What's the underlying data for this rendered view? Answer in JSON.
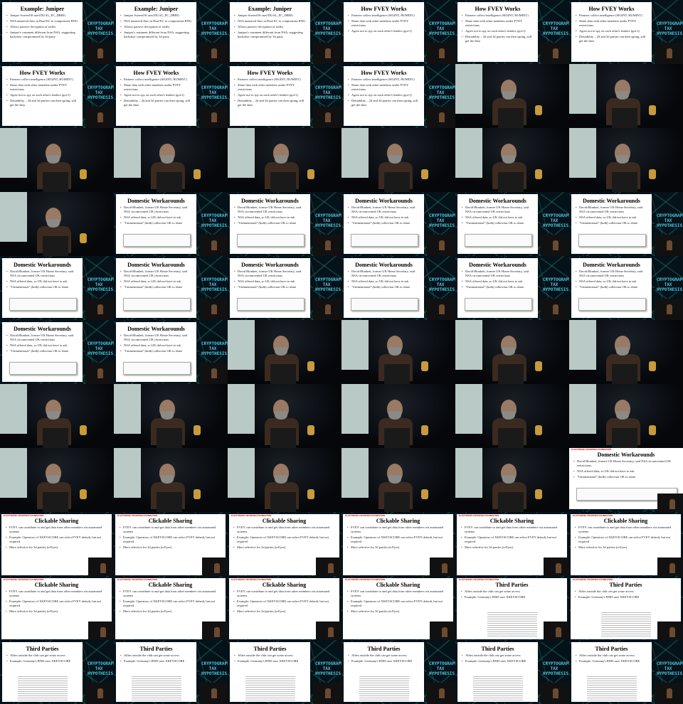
{
  "header": {
    "brand": "ELECTRONIC FRONTIER FOUNDATION"
  },
  "logo_text": "CRYPTOGRAPHY\nTAX\nHYPOTHESIS",
  "tiles": [
    {
      "kind": "slide",
      "style": "small",
      "title": "Example: Juniper",
      "bullets": [
        "Juniper ScreenOS used DUAL_EC_DRBG",
        "NSA mastered flaw in Dual EC to compromise RNG",
        "Allows passive decryption of traffic",
        "Juniper's comment different from NSA, suggesting backdoor compromised by 3d party"
      ],
      "quote": false,
      "doc": false
    },
    {
      "kind": "slide",
      "style": "small",
      "title": "Example: Juniper",
      "bullets": [
        "Juniper ScreenOS used DUAL_EC_DRBG",
        "NSA mastered flaw in Dual EC to compromise RNG",
        "Allows passive decryption of traffic",
        "Juniper's comment different from NSA, suggesting backdoor compromised by 3d party"
      ],
      "quote": false,
      "doc": false
    },
    {
      "kind": "slide",
      "style": "small",
      "title": "Example: Juniper",
      "bullets": [
        "Juniper ScreenOS used DUAL_EC_DRBG",
        "NSA mastered flaw in Dual EC to compromise RNG",
        "Allows passive decryption of traffic",
        "Juniper's comment different from NSA, suggesting backdoor compromised by 3d party"
      ],
      "quote": false,
      "doc": false
    },
    {
      "kind": "slide",
      "style": "small",
      "title": "How FVEY Works",
      "bullets": [
        "Partners collect intelligence (SIGINT, HUMINT)",
        "Share data with other members under FVEY restrictions",
        "Agree not to spy on each other's leaders (gov't)"
      ],
      "quote": false,
      "doc": false
    },
    {
      "kind": "slide",
      "style": "small",
      "title": "How FVEY Works",
      "bullets": [
        "Partners collect intelligence (SIGINT, HUMINT)",
        "Share data with other members under FVEY restrictions",
        "Agree not to spy on each other's leaders (gov't)",
        "Deniability – 2d and 3d parties can then spring, still get the data"
      ],
      "quote": false,
      "doc": false
    },
    {
      "kind": "slide",
      "style": "small",
      "title": "How FVEY Works",
      "bullets": [
        "Partners collect intelligence (SIGINT, HUMINT)",
        "Share data with other members under FVEY restrictions",
        "Agree not to spy on each other's leaders (gov't)",
        "Deniability – 2d and 3d parties can then spring, still get the data"
      ],
      "quote": false,
      "doc": false
    },
    {
      "kind": "slide",
      "style": "small",
      "title": "How FVEY Works",
      "bullets": [
        "Partners collect intelligence (SIGINT, HUMINT)",
        "Share data with other members under FVEY restrictions",
        "Agree not to spy on each other's leaders (gov't)",
        "Deniability – 2d and 3d parties can then spring, still get the data"
      ],
      "quote": false,
      "doc": false
    },
    {
      "kind": "slide",
      "style": "small",
      "title": "How FVEY Works",
      "bullets": [
        "Partners collect intelligence (SIGINT, HUMINT)",
        "Share data with other members under FVEY restrictions",
        "Agree not to spy on each other's leaders (gov't)",
        "Deniability – 2d and 3d parties can then spring, still get the data"
      ],
      "quote": false,
      "doc": false
    },
    {
      "kind": "slide",
      "style": "small",
      "title": "How FVEY Works",
      "bullets": [
        "Partners collect intelligence (SIGINT, HUMINT)",
        "Share data with other members under FVEY restrictions",
        "Agree not to spy on each other's leaders (gov't)",
        "Deniability – 2d and 3d parties can then spring, still get the data"
      ],
      "quote": false,
      "doc": false
    },
    {
      "kind": "slide",
      "style": "small",
      "title": "How FVEY Works",
      "bullets": [
        "Partners collect intelligence (SIGINT, HUMINT)",
        "Share data with other members under FVEY restrictions",
        "Agree not to spy on each other's leaders (gov't)",
        "Deniability – 2d and 3d parties can then spring, still get the data"
      ],
      "quote": false,
      "doc": false
    },
    {
      "kind": "camera"
    },
    {
      "kind": "camera"
    },
    {
      "kind": "camera"
    },
    {
      "kind": "camera"
    },
    {
      "kind": "camera"
    },
    {
      "kind": "camera"
    },
    {
      "kind": "camera"
    },
    {
      "kind": "camera"
    },
    {
      "kind": "camera"
    },
    {
      "kind": "slide",
      "style": "small",
      "title": "Domestic Workarounds",
      "bullets": [
        "David Blunkett, former UK Home Secretary, said NSA circumvented UK restrictions",
        "NSA offered data, so UK did not have to ask",
        "\"Unintentional\" (bulk) collection OK to share"
      ],
      "quote": true,
      "doc": false
    },
    {
      "kind": "slide",
      "style": "small",
      "title": "Domestic Workarounds",
      "bullets": [
        "David Blunkett, former UK Home Secretary, said NSA circumvented UK restrictions",
        "NSA offered data, so UK did not have to ask",
        "\"Unintentional\" (bulk) collection OK to share"
      ],
      "quote": true,
      "doc": false
    },
    {
      "kind": "slide",
      "style": "small",
      "title": "Domestic Workarounds",
      "bullets": [
        "David Blunkett, former UK Home Secretary, said NSA circumvented UK restrictions",
        "NSA offered data, so UK did not have to ask",
        "\"Unintentional\" (bulk) collection OK to share"
      ],
      "quote": true,
      "doc": false
    },
    {
      "kind": "slide",
      "style": "small",
      "title": "Domestic Workarounds",
      "bullets": [
        "David Blunkett, former UK Home Secretary, said NSA circumvented UK restrictions",
        "NSA offered data, so UK did not have to ask",
        "\"Unintentional\" (bulk) collection OK to share"
      ],
      "quote": true,
      "doc": false
    },
    {
      "kind": "slide",
      "style": "small",
      "title": "Domestic Workarounds",
      "bullets": [
        "David Blunkett, former UK Home Secretary, said NSA circumvented UK restrictions",
        "NSA offered data, so UK did not have to ask",
        "\"Unintentional\" (bulk) collection OK to share"
      ],
      "quote": true,
      "doc": false
    },
    {
      "kind": "slide",
      "style": "small",
      "title": "Domestic Workarounds",
      "bullets": [
        "David Blunkett, former UK Home Secretary, said NSA circumvented UK restrictions",
        "NSA offered data, so UK did not have to ask",
        "\"Unintentional\" (bulk) collection OK to share"
      ],
      "quote": true,
      "doc": false
    },
    {
      "kind": "slide",
      "style": "small",
      "title": "Domestic Workarounds",
      "bullets": [
        "David Blunkett, former UK Home Secretary, said NSA circumvented UK restrictions",
        "NSA offered data, so UK did not have to ask",
        "\"Unintentional\" (bulk) collection OK to share"
      ],
      "quote": true,
      "doc": false
    },
    {
      "kind": "slide",
      "style": "small",
      "title": "Domestic Workarounds",
      "bullets": [
        "David Blunkett, former UK Home Secretary, said NSA circumvented UK restrictions",
        "NSA offered data, so UK did not have to ask",
        "\"Unintentional\" (bulk) collection OK to share"
      ],
      "quote": true,
      "doc": false
    },
    {
      "kind": "slide",
      "style": "small",
      "title": "Domestic Workarounds",
      "bullets": [
        "David Blunkett, former UK Home Secretary, said NSA circumvented UK restrictions",
        "NSA offered data, so UK did not have to ask",
        "\"Unintentional\" (bulk) collection OK to share"
      ],
      "quote": true,
      "doc": false
    },
    {
      "kind": "slide",
      "style": "small",
      "title": "Domestic Workarounds",
      "bullets": [
        "David Blunkett, former UK Home Secretary, said NSA circumvented UK restrictions",
        "NSA offered data, so UK did not have to ask",
        "\"Unintentional\" (bulk) collection OK to share"
      ],
      "quote": true,
      "doc": false
    },
    {
      "kind": "slide",
      "style": "small",
      "title": "Domestic Workarounds",
      "bullets": [
        "David Blunkett, former UK Home Secretary, said NSA circumvented UK restrictions",
        "NSA offered data, so UK did not have to ask",
        "\"Unintentional\" (bulk) collection OK to share"
      ],
      "quote": true,
      "doc": false
    },
    {
      "kind": "slide",
      "style": "small",
      "title": "Domestic Workarounds",
      "bullets": [
        "David Blunkett, former UK Home Secretary, said NSA circumvented UK restrictions",
        "NSA offered data, so UK did not have to ask",
        "\"Unintentional\" (bulk) collection OK to share"
      ],
      "quote": true,
      "doc": false
    },
    {
      "kind": "slide",
      "style": "small",
      "title": "Domestic Workarounds",
      "bullets": [
        "David Blunkett, former UK Home Secretary, said NSA circumvented UK restrictions",
        "NSA offered data, so UK did not have to ask",
        "\"Unintentional\" (bulk) collection OK to share"
      ],
      "quote": true,
      "doc": false
    },
    {
      "kind": "camera"
    },
    {
      "kind": "camera"
    },
    {
      "kind": "camera"
    },
    {
      "kind": "camera"
    },
    {
      "kind": "camera"
    },
    {
      "kind": "camera"
    },
    {
      "kind": "camera"
    },
    {
      "kind": "camera"
    },
    {
      "kind": "camera"
    },
    {
      "kind": "camera"
    },
    {
      "kind": "camera"
    },
    {
      "kind": "camera"
    },
    {
      "kind": "camera"
    },
    {
      "kind": "camera"
    },
    {
      "kind": "camera"
    },
    {
      "kind": "slide",
      "style": "full",
      "title": "Domestic Workarounds",
      "bullets": [
        "David Blunkett, former UK Home Secretary, said NSA circumvented UK restrictions.",
        "NSA offered data, so UK did not have to ask.",
        "\"Unintentional\" (bulk) collection OK to share."
      ],
      "quote": true,
      "doc": false
    },
    {
      "kind": "slide",
      "style": "wide",
      "title": "Clickable Sharing",
      "bullets": [
        "FVEY can contribute to and get data from other members via automated systems",
        "Example: Operators of XKEYSCORE can select FVEY default, but not required",
        "More selective for 3d parties (n-Eyes)"
      ],
      "quote": false,
      "doc": false
    },
    {
      "kind": "slide",
      "style": "wide",
      "title": "Clickable Sharing",
      "bullets": [
        "FVEY can contribute to and get data from other members via automated systems",
        "Example: Operators of XKEYSCORE can select FVEY default, but not required",
        "More selective for 3d parties (n-Eyes)"
      ],
      "quote": false,
      "doc": false
    },
    {
      "kind": "slide",
      "style": "wide",
      "title": "Clickable Sharing",
      "bullets": [
        "FVEY can contribute to and get data from other members via automated systems",
        "Example: Operators of XKEYSCORE can select FVEY default, but not required",
        "More selective for 3d parties (n-Eyes)"
      ],
      "quote": false,
      "doc": false
    },
    {
      "kind": "slide",
      "style": "wide",
      "title": "Clickable Sharing",
      "bullets": [
        "FVEY can contribute to and get data from other members via automated systems",
        "Example: Operators of XKEYSCORE can select FVEY default, but not required",
        "More selective for 3d parties (n-Eyes)"
      ],
      "quote": false,
      "doc": false
    },
    {
      "kind": "slide",
      "style": "wide",
      "title": "Clickable Sharing",
      "bullets": [
        "FVEY can contribute to and get data from other members via automated systems",
        "Example: Operators of XKEYSCORE can select FVEY default, but not required",
        "More selective for 3d parties (n-Eyes)"
      ],
      "quote": false,
      "doc": false
    },
    {
      "kind": "slide",
      "style": "wide",
      "title": "Clickable Sharing",
      "bullets": [
        "FVEY can contribute to and get data from other members via automated systems",
        "Example: Operators of XKEYSCORE can select FVEY default, but not required",
        "More selective for 3d parties (n-Eyes)"
      ],
      "quote": false,
      "doc": false
    },
    {
      "kind": "slide",
      "style": "wide",
      "title": "Clickable Sharing",
      "bullets": [
        "FVEY can contribute to and get data from other members via automated systems",
        "Example: Operators of XKEYSCORE can select FVEY default, but not required",
        "More selective for 3d parties (n-Eyes)"
      ],
      "quote": false,
      "doc": false
    },
    {
      "kind": "slide",
      "style": "wide",
      "title": "Clickable Sharing",
      "bullets": [
        "FVEY can contribute to and get data from other members via automated systems",
        "Example: Operators of XKEYSCORE can select FVEY default, but not required",
        "More selective for 3d parties (n-Eyes)"
      ],
      "quote": false,
      "doc": false
    },
    {
      "kind": "slide",
      "style": "wide",
      "title": "Clickable Sharing",
      "bullets": [
        "FVEY can contribute to and get data from other members via automated systems",
        "Example: Operators of XKEYSCORE can select FVEY default, but not required",
        "More selective for 3d parties (n-Eyes)"
      ],
      "quote": false,
      "doc": false
    },
    {
      "kind": "slide",
      "style": "wide",
      "title": "Clickable Sharing",
      "bullets": [
        "FVEY can contribute to and get data from other members via automated systems",
        "Example: Operators of XKEYSCORE can select FVEY default, but not required",
        "More selective for 3d parties (n-Eyes)"
      ],
      "quote": false,
      "doc": false
    },
    {
      "kind": "slide",
      "style": "wide",
      "title": "Third Parties",
      "bullets": [
        "Allies outside the club can get some access",
        "Example: Germany's BND uses XKEYSCORE"
      ],
      "quote": false,
      "doc": true
    },
    {
      "kind": "slide",
      "style": "wide",
      "title": "Third Parties",
      "bullets": [
        "Allies outside the club can get some access",
        "Example: Germany's BND uses XKEYSCORE"
      ],
      "quote": false,
      "doc": true
    },
    {
      "kind": "slide",
      "style": "small",
      "title": "Third Parties",
      "bullets": [
        "Allies outside the club can get some access",
        "Example: Germany's BND uses XKEYSCORE"
      ],
      "quote": false,
      "doc": true
    },
    {
      "kind": "slide",
      "style": "small",
      "title": "Third Parties",
      "bullets": [
        "Allies outside the club can get some access",
        "Example: Germany's BND uses XKEYSCORE"
      ],
      "quote": false,
      "doc": true
    },
    {
      "kind": "slide",
      "style": "small",
      "title": "Third Parties",
      "bullets": [
        "Allies outside the club can get some access",
        "Example: Germany's BND uses XKEYSCORE"
      ],
      "quote": false,
      "doc": true
    },
    {
      "kind": "slide",
      "style": "small",
      "title": "Third Parties",
      "bullets": [
        "Allies outside the club can get some access",
        "Example: Germany's BND uses XKEYSCORE"
      ],
      "quote": false,
      "doc": true
    },
    {
      "kind": "slide",
      "style": "small",
      "title": "Third Parties",
      "bullets": [
        "Allies outside the club can get some access",
        "Example: Germany's BND uses XKEYSCORE"
      ],
      "quote": false,
      "doc": true
    },
    {
      "kind": "slide",
      "style": "small",
      "title": "Third Parties",
      "bullets": [
        "Allies outside the club can get some access",
        "Example: Germany's BND uses XKEYSCORE"
      ],
      "quote": false,
      "doc": true
    }
  ]
}
